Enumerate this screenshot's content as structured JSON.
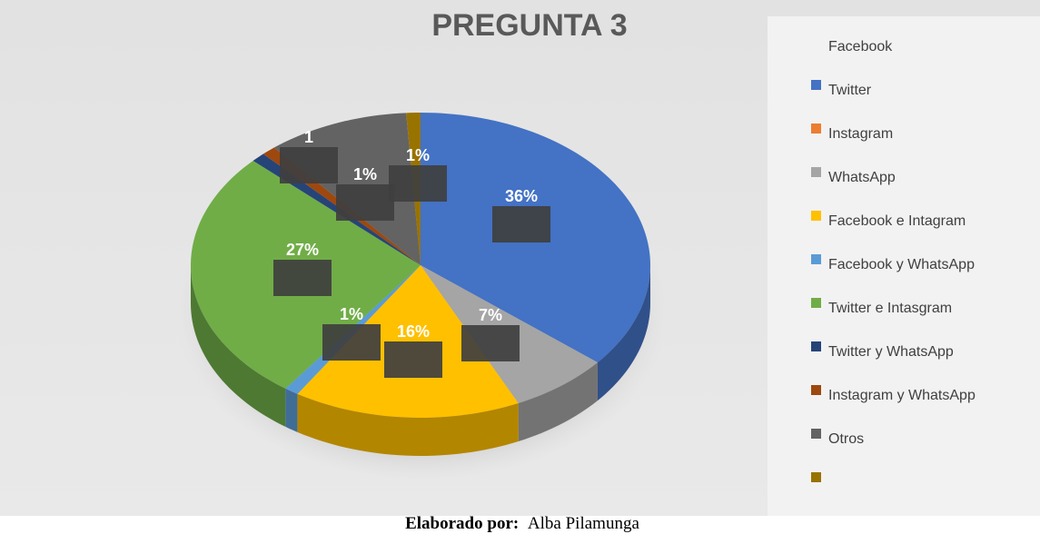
{
  "chart_data": {
    "type": "pie3d",
    "title": "PREGUNTA 3",
    "categories": [
      "Facebook",
      "Twitter",
      "Instagram",
      "WhatsApp",
      "Facebook e Intagram",
      "Facebook y WhatsApp",
      "Twitter e Intasgram",
      "Twitter y WhatsApp",
      "Instagram y WhatsApp",
      "Otros"
    ],
    "values": [
      36,
      0,
      7,
      16,
      1,
      27,
      1,
      1,
      10,
      1
    ],
    "value_labels": [
      "36%",
      null,
      "7%",
      "16%",
      "1%",
      "27%",
      "1",
      "1%",
      null,
      "1%"
    ],
    "colors": [
      "#4472c4",
      "#ed7d31",
      "#a5a5a5",
      "#ffc000",
      "#5b9bd5",
      "#70ad47",
      "#264478",
      "#9e480e",
      "#636363",
      "#997300"
    ],
    "legend": "right"
  },
  "footer": {
    "label": "Elaborado por:",
    "name": "Alba Pilamunga"
  }
}
